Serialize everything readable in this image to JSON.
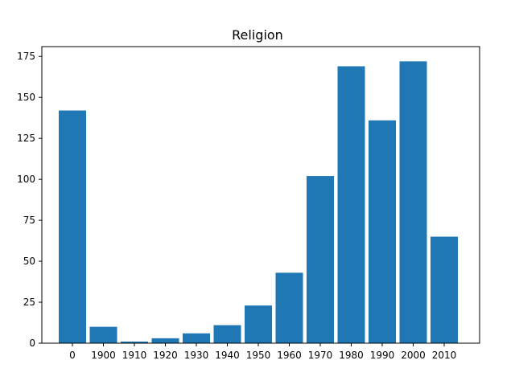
{
  "chart_data": {
    "type": "bar",
    "title": "Religion",
    "xlabel": "",
    "ylabel": "",
    "categories": [
      "0",
      "1900",
      "1910",
      "1920",
      "1930",
      "1940",
      "1950",
      "1960",
      "1970",
      "1980",
      "1990",
      "2000",
      "2010"
    ],
    "values": [
      142,
      10,
      1,
      3,
      6,
      11,
      23,
      43,
      102,
      169,
      136,
      172,
      65
    ],
    "ylim": [
      0,
      181
    ],
    "yticks": [
      0,
      25,
      50,
      75,
      100,
      125,
      150,
      175
    ],
    "bar_color": "#1f77b4",
    "grid": false,
    "legend": "none"
  }
}
